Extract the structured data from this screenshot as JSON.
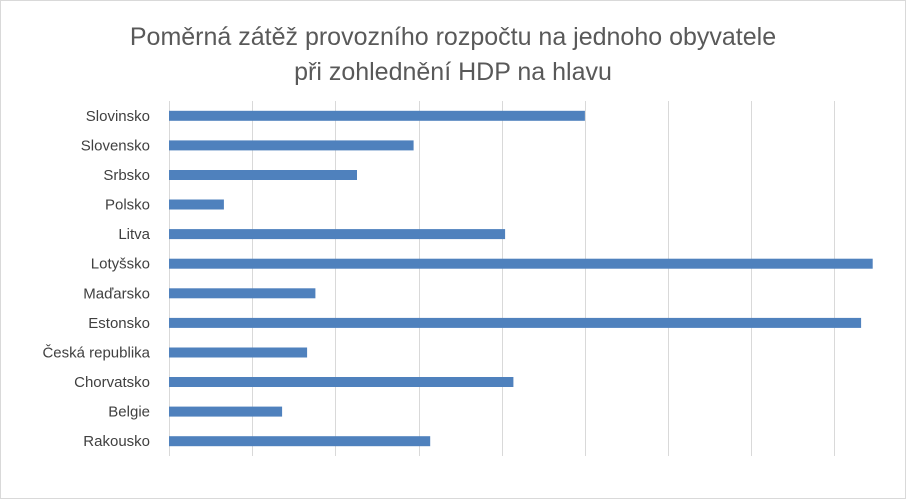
{
  "chart_data": {
    "type": "bar",
    "orientation": "horizontal",
    "title": "Poměrná zátěž provozního rozpočtu na jednoho obyvatele při zohlednění HDP na hlavu",
    "title_lines": [
      "Poměrná zátěž provozního rozpočtu na jednoho obyvatele",
      "při zohlednění HDP na hlavu"
    ],
    "categories": [
      "Slovinsko",
      "Slovensko",
      "Srbsko",
      "Polsko",
      "Litva",
      "Lotyšsko",
      "Maďarsko",
      "Estonsko",
      "Česká republika",
      "Chorvatsko",
      "Belgie",
      "Rakousko"
    ],
    "values": [
      2.5,
      1.47,
      1.13,
      0.33,
      2.02,
      4.23,
      0.88,
      4.16,
      0.83,
      2.07,
      0.68,
      1.57
    ],
    "xlim": [
      0,
      4.4
    ],
    "x_gridlines_step": 0.5,
    "grid": "vertical",
    "tick_labels_x": false,
    "legend": "none",
    "bar_color": "#4f81bd",
    "grid_color": "#d9d9d9"
  }
}
